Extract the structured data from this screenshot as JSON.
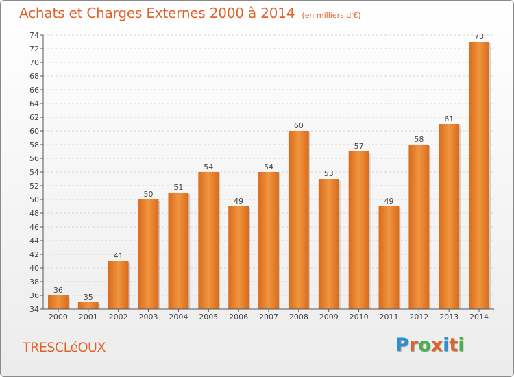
{
  "header": {
    "title": "Achats et Charges Externes 2000 à 2014",
    "subtitle": "(en milliers d'€)"
  },
  "footer": {
    "commune": "TRESCLéOUX",
    "logo_letters": [
      "P",
      "r",
      "o",
      "x",
      "i",
      "t",
      "i"
    ],
    "logo_colors": [
      "#2b8fd6",
      "#e0622a",
      "#49b04a",
      "#e0622a",
      "#2b8fd6",
      "#e0622a",
      "#49b04a"
    ]
  },
  "chart_data": {
    "type": "bar",
    "categories": [
      "2000",
      "2001",
      "2002",
      "2003",
      "2004",
      "2005",
      "2006",
      "2007",
      "2008",
      "2009",
      "2010",
      "2011",
      "2012",
      "2013",
      "2014"
    ],
    "values": [
      36,
      35,
      41,
      50,
      51,
      54,
      49,
      54,
      60,
      53,
      57,
      49,
      58,
      61,
      73
    ],
    "title": "Achats et Charges Externes 2000 à 2014",
    "subtitle": "(en milliers d'€)",
    "ylim": [
      34,
      74
    ],
    "yticks": [
      34,
      36,
      38,
      40,
      42,
      44,
      46,
      48,
      50,
      52,
      54,
      56,
      58,
      60,
      62,
      64,
      66,
      68,
      70,
      72,
      74
    ],
    "grid": true,
    "bar_color": "#f0953f",
    "bar_color_dark": "#d96b1c"
  }
}
